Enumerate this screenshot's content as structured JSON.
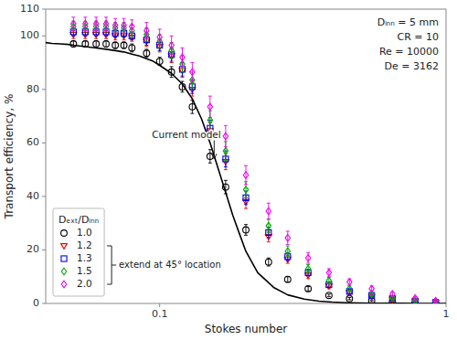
{
  "chart_data": {
    "type": "scatter",
    "x_label": "Stokes number",
    "y_label": "Transport efficiency, %",
    "log": "x",
    "xlim": [
      0.04,
      1.0
    ],
    "ylim": [
      0,
      110
    ],
    "xticks": [
      0.1,
      1
    ],
    "yticks": [
      0,
      20,
      40,
      60,
      80,
      100,
      110
    ],
    "grid": false,
    "legend": "lower left",
    "legend_title": "Dₑₓₜ/Dᵢₙₙ",
    "legend_note": "extend at 45° location",
    "info_text": [
      "Dᵢₙₙ = 5 mm",
      "CR = 10",
      "Re = 10000",
      "De = 3162"
    ],
    "annotations": [
      {
        "text": "Current model",
        "x": 0.155,
        "y": 54.0,
        "text_x": 0.094,
        "text_y": 62.0
      }
    ],
    "series": [
      {
        "type": "line",
        "color": "#000000",
        "x": [
          0.04,
          0.042,
          0.045,
          0.048,
          0.05,
          0.055,
          0.06,
          0.065,
          0.07,
          0.075,
          0.08,
          0.085,
          0.09,
          0.095,
          0.1,
          0.11,
          0.12,
          0.13,
          0.14,
          0.15,
          0.16,
          0.17,
          0.18,
          0.19,
          0.2,
          0.22,
          0.25,
          0.28,
          0.32,
          0.36,
          0.4,
          0.45,
          0.5,
          0.55,
          0.6,
          0.7,
          0.8,
          0.9,
          1.0
        ],
        "values": [
          97.5,
          97.2,
          97.0,
          96.8,
          96.5,
          96.0,
          95.5,
          95.0,
          94.5,
          94.0,
          93.2,
          92.5,
          91.5,
          90.5,
          89.0,
          86.0,
          82.0,
          76.5,
          69.0,
          60.0,
          50.5,
          41.5,
          33.0,
          26.0,
          19.5,
          11.5,
          6.0,
          3.2,
          1.6,
          0.85,
          0.5,
          0.28,
          0.17,
          0.1,
          0.07,
          0.03,
          0.015,
          0.008,
          0.004
        ]
      },
      {
        "type": "scatter",
        "name": "1.0",
        "color": "#000000",
        "marker": "circle",
        "x": [
          0.05,
          0.055,
          0.06,
          0.065,
          0.07,
          0.075,
          0.08,
          0.09,
          0.1,
          0.11,
          0.12,
          0.13,
          0.15,
          0.17,
          0.2,
          0.24,
          0.28,
          0.33,
          0.39,
          0.46,
          0.55,
          0.65,
          0.78,
          0.92
        ],
        "values": [
          97.0,
          97.0,
          97.0,
          97.0,
          96.5,
          96.5,
          95.5,
          93.5,
          90.5,
          86.5,
          81.0,
          73.5,
          55.0,
          43.5,
          27.5,
          15.5,
          9.0,
          5.5,
          3.0,
          1.8,
          1.0,
          0.5,
          0.2,
          0.1
        ],
        "errors": [
          1.2,
          1.2,
          1.2,
          1.2,
          1.2,
          1.2,
          1.5,
          1.5,
          1.5,
          2.0,
          2.0,
          2.5,
          2.5,
          2.5,
          2.0,
          1.5,
          1.0,
          0.8,
          0.5,
          0.4,
          0.3,
          0.2,
          0.1,
          0.1
        ]
      },
      {
        "type": "scatter",
        "name": "1.2",
        "color": "#EE0000",
        "marker": "triangle-down",
        "x": [
          0.05,
          0.055,
          0.06,
          0.065,
          0.07,
          0.075,
          0.08,
          0.09,
          0.1,
          0.11,
          0.12,
          0.13,
          0.15,
          0.17,
          0.2,
          0.24,
          0.28,
          0.33,
          0.39,
          0.46,
          0.55,
          0.65,
          0.78,
          0.92
        ],
        "values": [
          100.5,
          100.5,
          100.5,
          100.5,
          100.0,
          100.0,
          99.5,
          98.0,
          96.0,
          92.5,
          87.0,
          80.0,
          64.5,
          53.0,
          38.0,
          25.0,
          16.5,
          10.5,
          6.5,
          4.0,
          2.5,
          1.5,
          0.8,
          0.3
        ],
        "errors": [
          1.5,
          1.5,
          1.5,
          1.5,
          1.5,
          1.5,
          1.5,
          2.0,
          2.0,
          2.5,
          2.5,
          2.5,
          3.0,
          3.0,
          2.5,
          2.0,
          1.5,
          1.2,
          1.0,
          0.8,
          0.5,
          0.4,
          0.3,
          0.2
        ]
      },
      {
        "type": "scatter",
        "name": "1.3",
        "color": "#0000EE",
        "marker": "square",
        "x": [
          0.05,
          0.055,
          0.06,
          0.065,
          0.07,
          0.075,
          0.08,
          0.09,
          0.1,
          0.11,
          0.12,
          0.13,
          0.15,
          0.17,
          0.2,
          0.24,
          0.28,
          0.33,
          0.39,
          0.46,
          0.55,
          0.65,
          0.78,
          0.92
        ],
        "values": [
          101.5,
          101.5,
          101.5,
          101.5,
          101.0,
          101.0,
          100.0,
          98.5,
          96.5,
          93.0,
          87.5,
          81.0,
          65.5,
          54.0,
          39.5,
          26.5,
          17.5,
          11.5,
          7.0,
          4.5,
          3.0,
          1.8,
          0.9,
          0.4
        ],
        "errors": [
          1.5,
          1.5,
          1.5,
          1.5,
          1.5,
          1.5,
          1.5,
          2.0,
          2.0,
          2.5,
          2.5,
          2.5,
          3.0,
          3.0,
          2.5,
          2.0,
          1.5,
          1.2,
          1.0,
          0.8,
          0.5,
          0.4,
          0.3,
          0.2
        ]
      },
      {
        "type": "scatter",
        "name": "1.5",
        "color": "#00AA00",
        "marker": "diamond",
        "x": [
          0.05,
          0.055,
          0.06,
          0.065,
          0.07,
          0.075,
          0.08,
          0.09,
          0.1,
          0.11,
          0.12,
          0.13,
          0.15,
          0.17,
          0.2,
          0.24,
          0.28,
          0.33,
          0.39,
          0.46,
          0.55,
          0.65,
          0.78,
          0.92
        ],
        "values": [
          103.5,
          103.5,
          103.5,
          103.5,
          103.0,
          103.0,
          102.0,
          100.5,
          98.0,
          94.5,
          89.5,
          83.5,
          68.5,
          57.0,
          42.5,
          29.0,
          19.5,
          13.0,
          8.5,
          5.5,
          3.5,
          2.0,
          1.0,
          0.5
        ],
        "errors": [
          2.0,
          2.0,
          2.0,
          2.0,
          2.0,
          2.0,
          2.0,
          2.5,
          2.5,
          3.0,
          3.0,
          3.0,
          3.5,
          3.5,
          3.0,
          2.5,
          2.0,
          1.5,
          1.2,
          1.0,
          0.7,
          0.5,
          0.3,
          0.2
        ]
      },
      {
        "type": "scatter",
        "name": "2.0",
        "color": "#EE00EE",
        "marker": "diamond",
        "x": [
          0.05,
          0.055,
          0.06,
          0.065,
          0.07,
          0.075,
          0.08,
          0.09,
          0.1,
          0.11,
          0.12,
          0.13,
          0.15,
          0.17,
          0.2,
          0.24,
          0.28,
          0.33,
          0.39,
          0.46,
          0.55,
          0.65,
          0.78,
          0.92
        ],
        "values": [
          104.5,
          104.5,
          104.5,
          104.5,
          104.0,
          104.0,
          103.5,
          102.0,
          99.5,
          96.5,
          92.0,
          86.5,
          73.5,
          62.5,
          48.0,
          34.5,
          24.5,
          17.0,
          11.5,
          8.0,
          5.5,
          3.5,
          2.0,
          1.0
        ],
        "errors": [
          2.5,
          2.5,
          2.5,
          2.5,
          2.5,
          2.5,
          2.5,
          3.0,
          3.0,
          3.5,
          3.5,
          3.5,
          4.0,
          4.0,
          3.5,
          3.0,
          2.5,
          2.0,
          1.5,
          1.2,
          1.0,
          0.7,
          0.5,
          0.3
        ]
      }
    ]
  }
}
